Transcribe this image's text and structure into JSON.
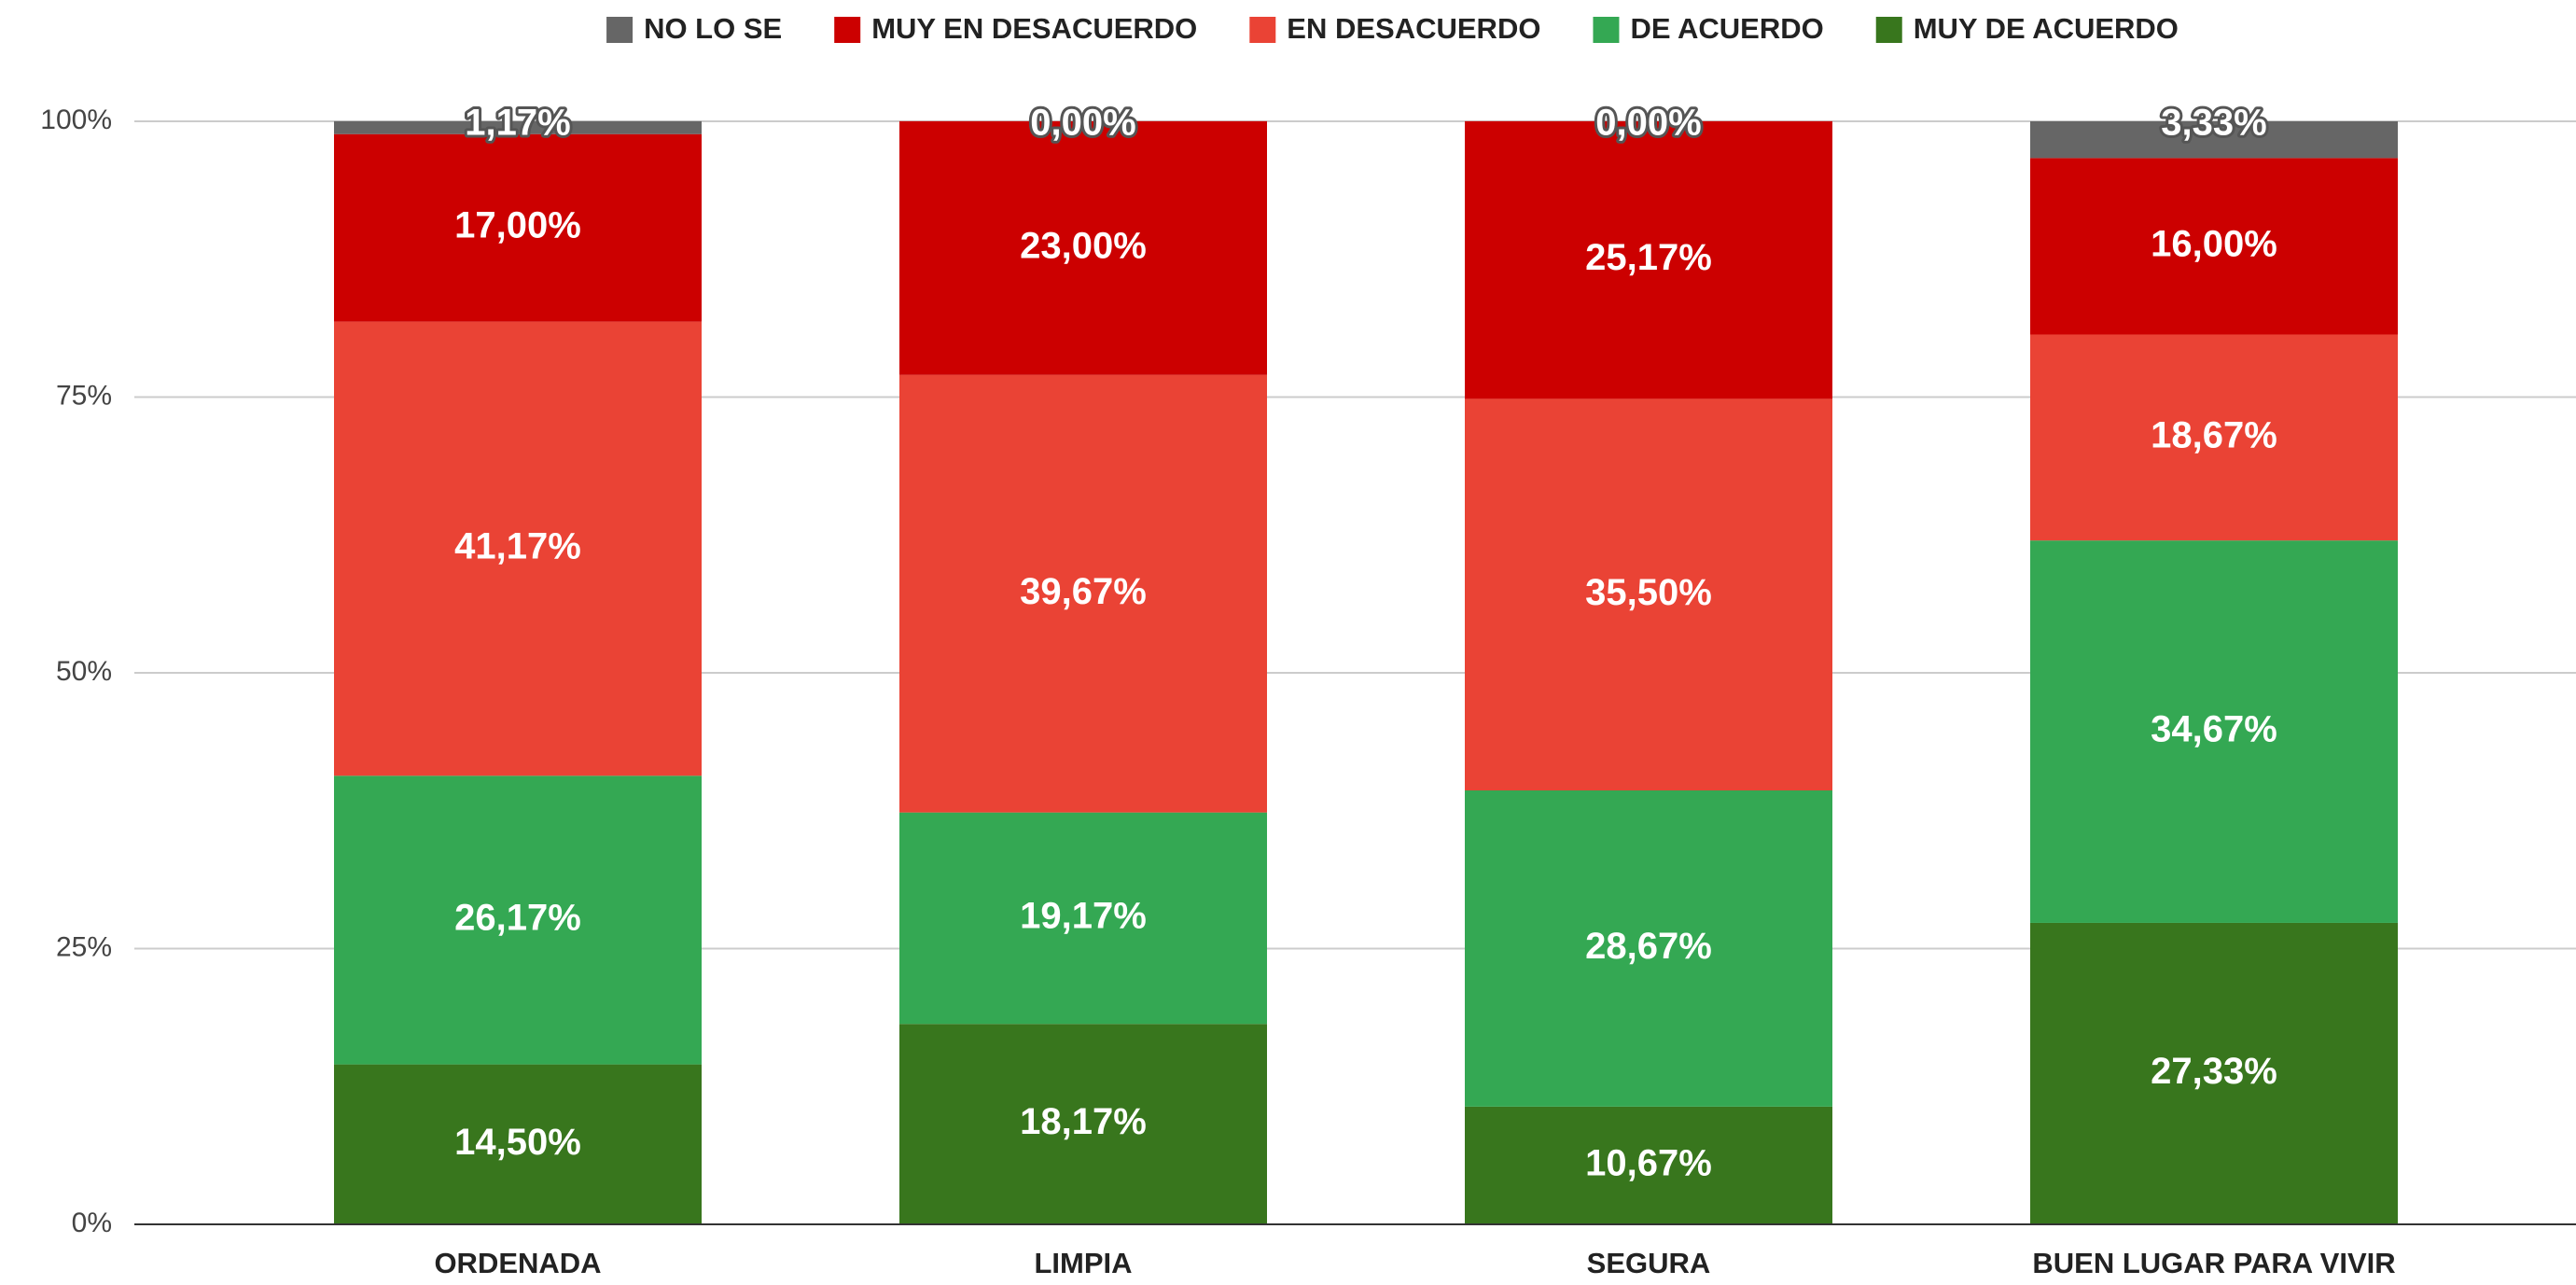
{
  "chart_data": {
    "type": "stacked_bar",
    "categories": [
      "ORDENADA",
      "LIMPIA",
      "SEGURA",
      "BUEN LUGAR PARA VIVIR"
    ],
    "series": [
      {
        "name": "MUY DE ACUERDO",
        "color": "#38761d",
        "values": [
          14.5,
          18.17,
          10.67,
          27.33
        ],
        "value_labels": [
          "14,50%",
          "18,17%",
          "10,67%",
          "27,33%"
        ]
      },
      {
        "name": "DE ACUERDO",
        "color": "#34a853",
        "values": [
          26.17,
          19.17,
          28.67,
          34.67
        ],
        "value_labels": [
          "26,17%",
          "19,17%",
          "28,67%",
          "34,67%"
        ]
      },
      {
        "name": "EN DESACUERDO",
        "color": "#ea4335",
        "values": [
          41.17,
          39.67,
          35.5,
          18.67
        ],
        "value_labels": [
          "41,17%",
          "39,67%",
          "35,50%",
          "18,67%"
        ]
      },
      {
        "name": "MUY EN DESACUERDO",
        "color": "#cc0000",
        "values": [
          17,
          23,
          25.17,
          16
        ],
        "value_labels": [
          "17,00%",
          "23,00%",
          "25,17%",
          "16,00%"
        ]
      },
      {
        "name": "NO LO SE",
        "color": "#666666",
        "values": [
          1.17,
          0,
          0,
          3.33
        ],
        "value_labels": [
          "1,17%",
          "0,00%",
          "0,00%",
          "3,33%"
        ]
      }
    ],
    "ylim": [
      0,
      100
    ],
    "yticks": [
      {
        "value": 0,
        "label": "0%"
      },
      {
        "value": 25,
        "label": "25%"
      },
      {
        "value": 50,
        "label": "50%"
      },
      {
        "value": 75,
        "label": "75%"
      },
      {
        "value": 100,
        "label": "100%"
      }
    ],
    "grid": true,
    "legend": "top"
  }
}
